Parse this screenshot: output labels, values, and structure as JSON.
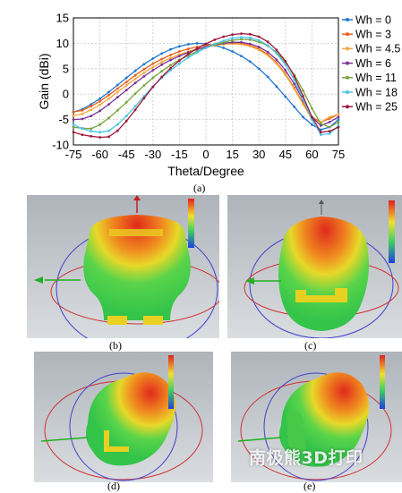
{
  "chart_data": {
    "type": "line",
    "xlabel": "Theta/Degree",
    "ylabel": "Gain (dBi)",
    "xlim": [
      -75,
      75
    ],
    "ylim": [
      -10,
      15
    ],
    "xticks": [
      "-75",
      "-60",
      "-45",
      "-30",
      "-15",
      "0",
      "15",
      "30",
      "45",
      "60",
      "75"
    ],
    "yticks": [
      "-10",
      "-5",
      "0",
      "5",
      "10",
      "15"
    ],
    "grid": true,
    "legend_position": "right-outside",
    "x": [
      -75,
      -70,
      -65,
      -60,
      -55,
      -50,
      -45,
      -40,
      -35,
      -30,
      -25,
      -20,
      -15,
      -10,
      -5,
      0,
      5,
      10,
      15,
      20,
      25,
      30,
      35,
      40,
      45,
      50,
      55,
      60,
      65,
      70,
      75
    ],
    "series": [
      {
        "name": "Wh = 0",
        "color": "#1f77d0",
        "values": [
          -3.5,
          -3,
          -2,
          -0.9,
          0.4,
          1.8,
          3.2,
          4.6,
          5.9,
          7.0,
          8.0,
          8.8,
          9.4,
          9.8,
          10,
          9.9,
          9.6,
          9.1,
          8.4,
          7.5,
          6.4,
          5.0,
          3.4,
          1.5,
          -0.5,
          -2.5,
          -4.5,
          -6.0,
          -7.0,
          -6.5,
          -5
        ]
      },
      {
        "name": "Wh = 3",
        "color": "#e8601c",
        "values": [
          -3.5,
          -3.2,
          -2.4,
          -1.4,
          -0.2,
          1.1,
          2.4,
          3.7,
          4.9,
          6.0,
          6.9,
          7.7,
          8.4,
          8.9,
          9.3,
          9.6,
          9.8,
          10.0,
          10.1,
          10.0,
          9.6,
          8.9,
          7.8,
          6.2,
          4.0,
          1.2,
          -1.8,
          -4.5,
          -5.5,
          -4.8,
          -4.0
        ]
      },
      {
        "name": "Wh = 4.5",
        "color": "#f2a93b",
        "values": [
          -4.2,
          -3.9,
          -3.1,
          -2.1,
          -0.9,
          0.4,
          1.7,
          3.0,
          4.2,
          5.3,
          6.3,
          7.1,
          7.8,
          8.4,
          8.9,
          9.3,
          9.6,
          9.8,
          9.9,
          9.8,
          9.4,
          8.7,
          7.6,
          6.0,
          3.8,
          1.0,
          -2.0,
          -5.0,
          -5.5,
          -4.5,
          -4.0
        ]
      },
      {
        "name": "Wh = 6",
        "color": "#7b3294",
        "values": [
          -5.0,
          -4.9,
          -4.3,
          -3.3,
          -2.0,
          -0.6,
          0.8,
          2.2,
          3.5,
          4.7,
          5.8,
          6.7,
          7.5,
          8.2,
          8.8,
          9.3,
          9.7,
          10.0,
          10.2,
          10.2,
          9.9,
          9.3,
          8.3,
          6.8,
          4.7,
          2.0,
          -1.2,
          -4.5,
          -6.2,
          -5.5,
          -4.5
        ]
      },
      {
        "name": "Wh = 11",
        "color": "#74a43e",
        "values": [
          -6.5,
          -6.7,
          -6.8,
          -6.0,
          -4.7,
          -3.2,
          -1.6,
          0.1,
          1.7,
          3.2,
          4.5,
          5.7,
          6.7,
          7.6,
          8.4,
          9.1,
          9.7,
          10.2,
          10.6,
          10.8,
          10.7,
          10.3,
          9.5,
          8.2,
          6.3,
          3.8,
          0.7,
          -2.8,
          -5.8,
          -6.5,
          -5.5
        ]
      },
      {
        "name": "Wh = 18",
        "color": "#4cc3e6",
        "values": [
          -6.0,
          -6.8,
          -7.3,
          -7.5,
          -7.2,
          -6.0,
          -4.3,
          -2.4,
          -0.4,
          1.5,
          3.2,
          4.7,
          6.0,
          7.2,
          8.2,
          9.1,
          9.9,
          10.5,
          11.0,
          11.2,
          11.1,
          10.6,
          9.6,
          8.0,
          5.8,
          2.8,
          -1.0,
          -5.0,
          -8.0,
          -7.8,
          -6.2
        ]
      },
      {
        "name": "Wh = 25",
        "color": "#9e1a3a",
        "values": [
          -7.5,
          -8.0,
          -8.3,
          -8.5,
          -8.4,
          -7.2,
          -5.3,
          -3.1,
          -0.8,
          1.4,
          3.4,
          5.1,
          6.6,
          7.9,
          9.0,
          9.9,
          10.7,
          11.3,
          11.7,
          11.9,
          11.8,
          11.3,
          10.3,
          8.7,
          6.5,
          3.5,
          -0.4,
          -4.5,
          -7.5,
          -7.3,
          -6.5
        ]
      }
    ],
    "subfigure_labels": [
      "(a)",
      "(b)",
      "(c)",
      "(d)",
      "(e)"
    ]
  },
  "watermark": "南极熊3D打印",
  "colors": {
    "panel_bg": "#c8ccd0",
    "pattern_hot": "#e03020",
    "pattern_warm": "#f0c020",
    "pattern_cool": "#40d050",
    "antenna": "#e8d020"
  }
}
